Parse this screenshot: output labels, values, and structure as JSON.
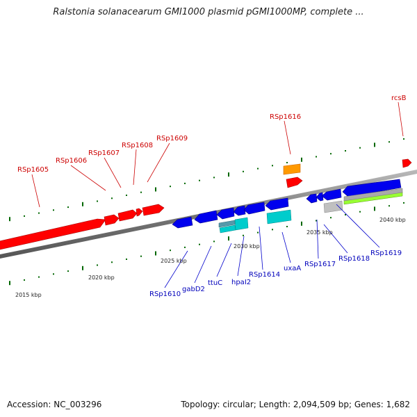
{
  "title": "Ralstonia solanacearum GMI1000 plasmid pGMI1000MP, complete ...",
  "footer": {
    "accession": "Accession: NC_003296",
    "info": "Topology: circular; Length: 2,094,509 bp; Genes: 1,682"
  },
  "kbp_labels": [
    "2015 kbp",
    "2020 kbp",
    "2025 kbp",
    "2030 kbp",
    "2035 kbp",
    "2040 kbp"
  ],
  "forward_genes": [
    "RSp1605",
    "RSp1606",
    "RSp1607",
    "RSp1608",
    "RSp1609",
    "RSp1616",
    "rcsB"
  ],
  "reverse_genes": [
    "RSp1610",
    "gabD2",
    "ttuC",
    "hpaI2",
    "RSp1614",
    "uxaA",
    "RSp1617",
    "RSp1618",
    "RSp1619"
  ],
  "colors": {
    "forward": "#ff0000",
    "reverse": "#0000ee",
    "rna": "#00cccc",
    "misc": "#ff9900",
    "other": "#c0c0c0",
    "feature": "#99ff33",
    "tick": "#006600",
    "axis": "#808080"
  }
}
